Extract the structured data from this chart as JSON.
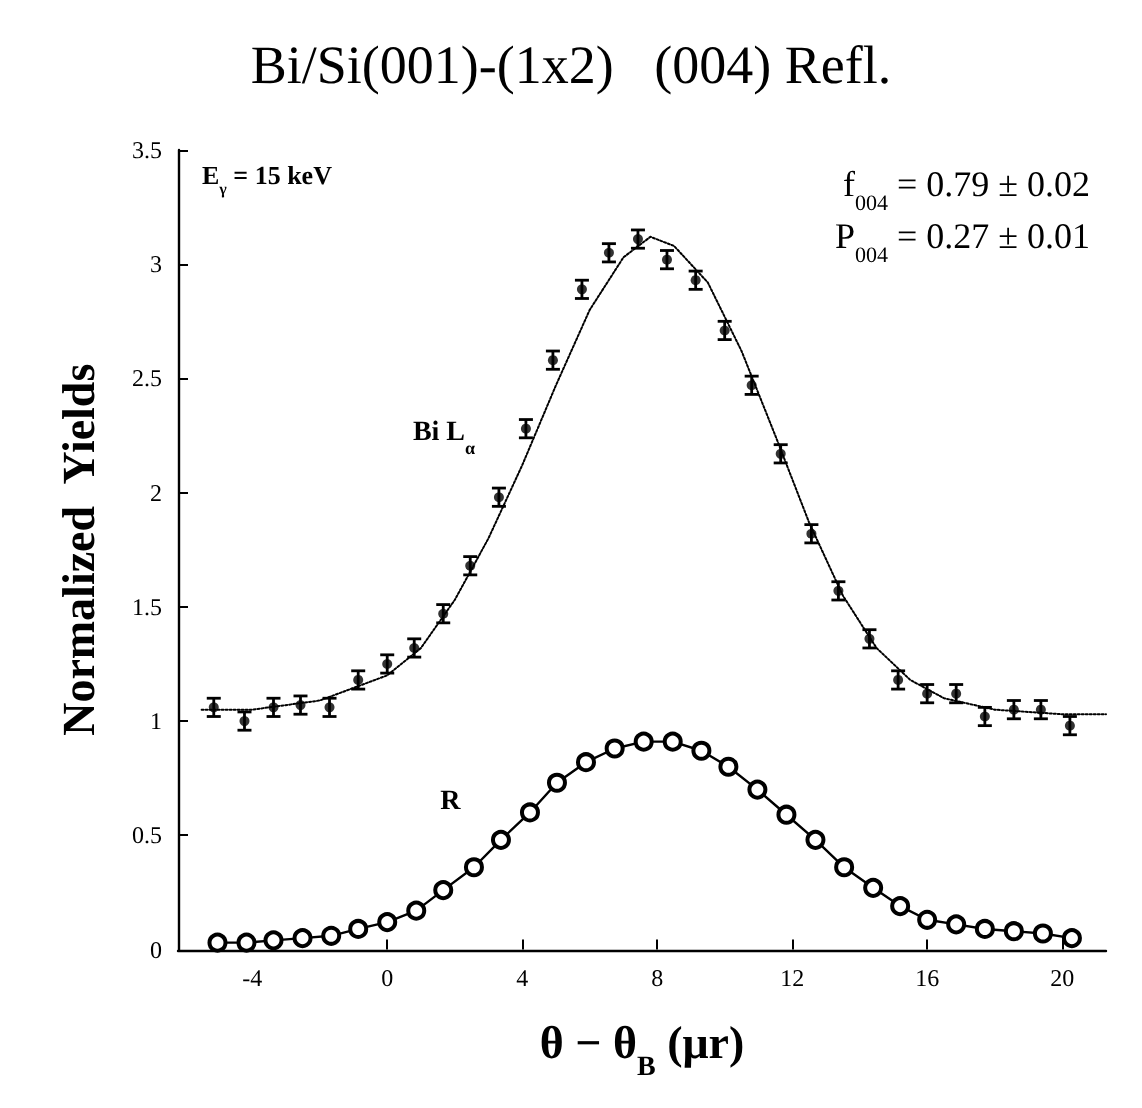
{
  "chart_data": {
    "type": "scatter",
    "title": "Bi/Si(001)-(1x2)   (004) Refl.",
    "xlabel": "θ − θ$_{B}$ (μr)",
    "ylabel": "Normalized  Yields",
    "xlim": [
      -6.2,
      21.3
    ],
    "xticks": [
      -4,
      0,
      4,
      8,
      12,
      16,
      20
    ],
    "ylim": [
      0,
      3.5
    ],
    "yticks": [
      0,
      0.5,
      1,
      1.5,
      2,
      2.5,
      3,
      3.5
    ],
    "grid": false,
    "series": [
      {
        "color": "#000000",
        "marker": "circle",
        "x": [
          -5.14,
          -4.23,
          -3.37,
          -2.57,
          -1.71,
          -0.86,
          0,
          0.8,
          1.66,
          2.46,
          3.31,
          4.11,
          4.91,
          5.77,
          6.57,
          7.43,
          8.29,
          9.14,
          10.0,
          10.8,
          11.66,
          12.57,
          13.37,
          14.29,
          15.14,
          16.0,
          16.86,
          17.71,
          18.57,
          19.37,
          20.23
        ],
        "values": [
          1.06,
          1.0,
          1.06,
          1.07,
          1.06,
          1.18,
          1.25,
          1.32,
          1.47,
          1.68,
          1.98,
          2.28,
          2.58,
          2.89,
          3.05,
          3.11,
          3.02,
          2.93,
          2.71,
          2.47,
          2.17,
          1.82,
          1.57,
          1.36,
          1.18,
          1.12,
          1.12,
          1.02,
          1.05,
          1.05,
          0.98
        ],
        "errors": [
          0.04,
          0.04,
          0.04,
          0.04,
          0.04,
          0.04,
          0.04,
          0.04,
          0.04,
          0.04,
          0.04,
          0.04,
          0.04,
          0.04,
          0.04,
          0.04,
          0.04,
          0.04,
          0.04,
          0.04,
          0.04,
          0.04,
          0.04,
          0.04,
          0.04,
          0.04,
          0.04,
          0.04,
          0.04,
          0.04,
          0.04
        ]
      },
      {
        "type": "line",
        "color": "#000000",
        "marker": "none",
        "line_style": "dotted",
        "x": [
          -5.5,
          -4,
          -2,
          0,
          1,
          2,
          3,
          4,
          5,
          6,
          7,
          7.8,
          8.5,
          9.5,
          10.5,
          11.5,
          12.5,
          13.5,
          14.5,
          15.5,
          16.5,
          18,
          20,
          21.3
        ],
        "values": [
          1.05,
          1.05,
          1.09,
          1.2,
          1.32,
          1.53,
          1.8,
          2.12,
          2.47,
          2.8,
          3.03,
          3.12,
          3.08,
          2.92,
          2.62,
          2.25,
          1.87,
          1.55,
          1.32,
          1.18,
          1.1,
          1.05,
          1.03,
          1.03
        ]
      },
      {
        "type": "line",
        "color": "#000000",
        "marker": "circle",
        "line_style": "solid",
        "x": [
          -5.03,
          -4.17,
          -3.37,
          -2.51,
          -1.66,
          -0.86,
          0,
          0.86,
          1.66,
          2.57,
          3.37,
          4.23,
          5.03,
          5.89,
          6.74,
          7.6,
          8.46,
          9.31,
          10.11,
          10.97,
          11.83,
          12.69,
          13.54,
          14.4,
          15.2,
          16.0,
          16.86,
          17.71,
          18.57,
          19.43,
          20.29
        ],
        "values": [
          0.03,
          0.03,
          0.04,
          0.05,
          0.06,
          0.09,
          0.12,
          0.17,
          0.26,
          0.36,
          0.48,
          0.6,
          0.73,
          0.82,
          0.88,
          0.91,
          0.91,
          0.87,
          0.8,
          0.7,
          0.59,
          0.48,
          0.36,
          0.27,
          0.19,
          0.13,
          0.11,
          0.09,
          0.08,
          0.07,
          0.05
        ]
      }
    ],
    "annotations": [
      "E$_{γ}$ = 15 keV",
      "f$_{004}$ = 0.79 ± 0.02",
      "P$_{004}$ = 0.27 ± 0.01",
      "Bi L$_{α}$",
      "R"
    ]
  }
}
